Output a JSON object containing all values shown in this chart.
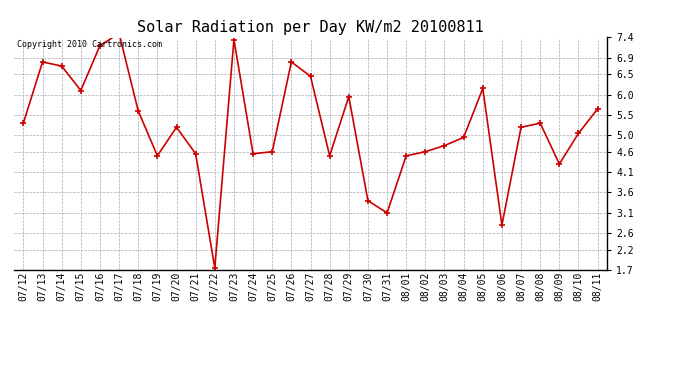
{
  "title": "Solar Radiation per Day KW/m2 20100811",
  "copyright_text": "Copyright 2010 Cartronics.com",
  "x_labels": [
    "07/12",
    "07/13",
    "07/14",
    "07/15",
    "07/16",
    "07/17",
    "07/18",
    "07/19",
    "07/20",
    "07/21",
    "07/22",
    "07/23",
    "07/24",
    "07/25",
    "07/26",
    "07/27",
    "07/28",
    "07/29",
    "07/30",
    "07/31",
    "08/01",
    "08/02",
    "08/03",
    "08/04",
    "08/05",
    "08/06",
    "08/07",
    "08/08",
    "08/09",
    "08/10",
    "08/11"
  ],
  "y_values": [
    5.3,
    6.8,
    6.7,
    6.1,
    7.2,
    7.5,
    5.6,
    4.5,
    5.2,
    4.55,
    1.75,
    7.35,
    4.55,
    4.6,
    6.8,
    6.45,
    4.5,
    5.95,
    3.4,
    3.1,
    4.5,
    4.6,
    4.75,
    4.95,
    6.15,
    2.8,
    5.2,
    5.3,
    4.3,
    5.05,
    5.65
  ],
  "line_color": "#cc0000",
  "marker_color": "#cc0000",
  "background_color": "#ffffff",
  "grid_color": "#aaaaaa",
  "ylim": [
    1.7,
    7.4
  ],
  "yticks": [
    1.7,
    2.2,
    2.6,
    3.1,
    3.6,
    4.1,
    4.6,
    5.0,
    5.5,
    6.0,
    6.5,
    6.9,
    7.4
  ],
  "title_fontsize": 11,
  "copyright_fontsize": 6,
  "tick_fontsize": 7,
  "axis_bg_color": "#ffffff"
}
